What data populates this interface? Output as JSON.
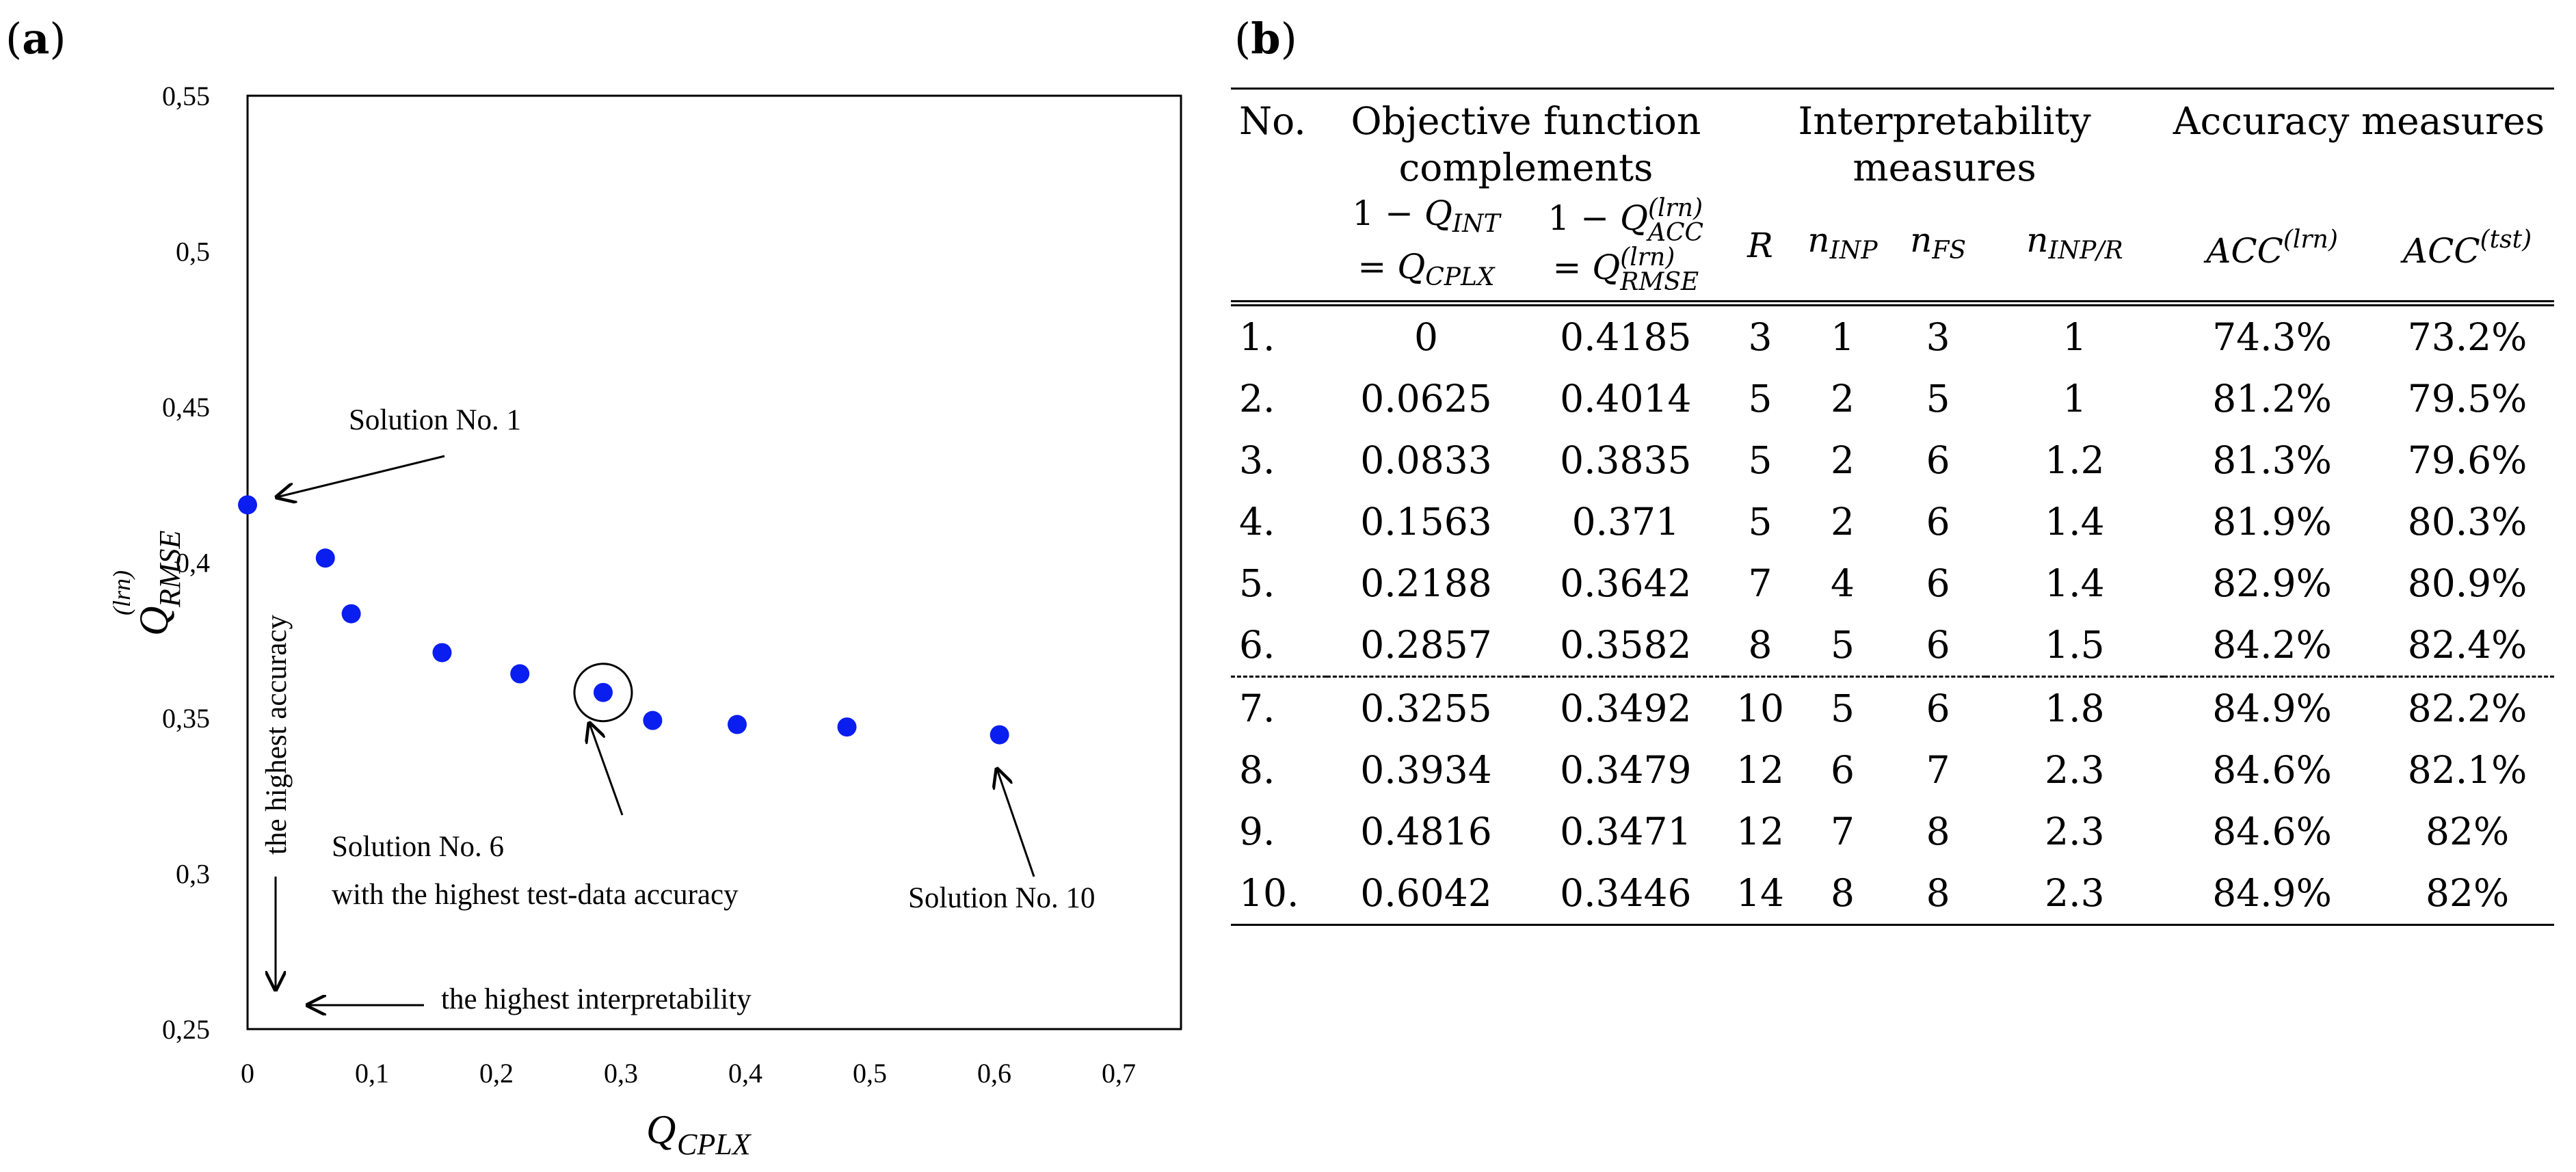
{
  "panels": {
    "a": "(a)",
    "b": "(b)"
  },
  "chart_data": {
    "type": "scatter",
    "title": "",
    "xlabel": {
      "base": "Q",
      "sub": "CPLX"
    },
    "ylabel": {
      "base": "Q",
      "sub": "RMSE",
      "sup": "(lrn)"
    },
    "xlim": [
      0,
      0.75
    ],
    "ylim": [
      0.25,
      0.55
    ],
    "xticks": [
      0,
      0.1,
      0.2,
      0.3,
      0.4,
      0.5,
      0.6,
      0.7
    ],
    "yticks": [
      0.25,
      0.3,
      0.35,
      0.4,
      0.45,
      0.5,
      0.55
    ],
    "xtick_labels": [
      "0",
      "0,1",
      "0,2",
      "0,3",
      "0,4",
      "0,5",
      "0,6",
      "0,7"
    ],
    "ytick_labels": [
      "0,25",
      "0,3",
      "0,35",
      "0,4",
      "0,45",
      "0,5",
      "0,55"
    ],
    "point_color": "#0a1ef0",
    "points": [
      {
        "x": 0.0,
        "y": 0.4185
      },
      {
        "x": 0.0625,
        "y": 0.4014
      },
      {
        "x": 0.0833,
        "y": 0.3835
      },
      {
        "x": 0.1563,
        "y": 0.371
      },
      {
        "x": 0.2188,
        "y": 0.3642
      },
      {
        "x": 0.2857,
        "y": 0.3582
      },
      {
        "x": 0.3255,
        "y": 0.3492
      },
      {
        "x": 0.3934,
        "y": 0.3479
      },
      {
        "x": 0.4816,
        "y": 0.3471
      },
      {
        "x": 0.6042,
        "y": 0.3446
      }
    ],
    "highlighted_point_index": 5,
    "annotations": {
      "solution1": "Solution No. 1",
      "solution6_line1": "Solution No. 6",
      "solution6_line2": "with the highest test-data accuracy",
      "solution10": "Solution No. 10",
      "highest_accuracy": "the highest accuracy",
      "highest_interpretability": "the highest interpretability"
    }
  },
  "table": {
    "headers": {
      "no": "No.",
      "objective": "Objective function complements",
      "interpretability": "Interpretability measures",
      "accuracy": "Accuracy measures"
    },
    "rows": [
      [
        "1.",
        "0",
        "0.4185",
        "3",
        "1",
        "3",
        "1",
        "74.3%",
        "73.2%"
      ],
      [
        "2.",
        "0.0625",
        "0.4014",
        "5",
        "2",
        "5",
        "1",
        "81.2%",
        "79.5%"
      ],
      [
        "3.",
        "0.0833",
        "0.3835",
        "5",
        "2",
        "6",
        "1.2",
        "81.3%",
        "79.6%"
      ],
      [
        "4.",
        "0.1563",
        "0.371",
        "5",
        "2",
        "6",
        "1.4",
        "81.9%",
        "80.3%"
      ],
      [
        "5.",
        "0.2188",
        "0.3642",
        "7",
        "4",
        "6",
        "1.4",
        "82.9%",
        "80.9%"
      ],
      [
        "6.",
        "0.2857",
        "0.3582",
        "8",
        "5",
        "6",
        "1.5",
        "84.2%",
        "82.4%"
      ],
      [
        "7.",
        "0.3255",
        "0.3492",
        "10",
        "5",
        "6",
        "1.8",
        "84.9%",
        "82.2%"
      ],
      [
        "8.",
        "0.3934",
        "0.3479",
        "12",
        "6",
        "7",
        "2.3",
        "84.6%",
        "82.1%"
      ],
      [
        "9.",
        "0.4816",
        "0.3471",
        "12",
        "7",
        "8",
        "2.3",
        "84.6%",
        "82%"
      ],
      [
        "10.",
        "0.6042",
        "0.3446",
        "14",
        "8",
        "8",
        "2.3",
        "84.9%",
        "82%"
      ]
    ],
    "dashed_after_row": 6
  }
}
